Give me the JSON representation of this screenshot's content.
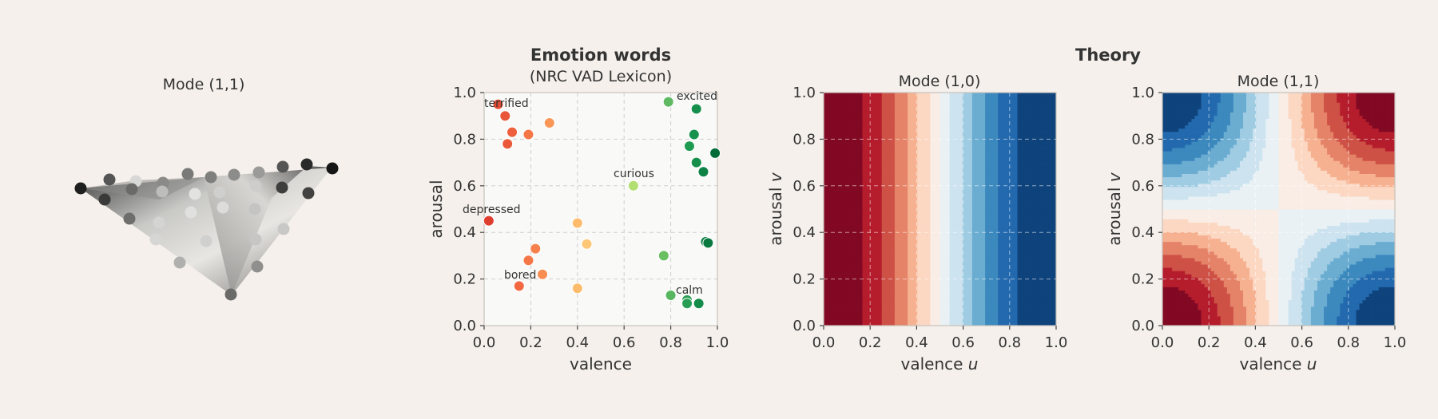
{
  "chart_data": [
    {
      "type": "surface3d",
      "title": "Mode (1,1)",
      "description_points": "3D surface view, axes hidden"
    },
    {
      "type": "scatter",
      "title": "Emotion words",
      "subtitle": "(NRC VAD Lexicon)",
      "xlabel": "valence",
      "ylabel": "arousal",
      "xlim": [
        0,
        1
      ],
      "ylim": [
        0,
        1
      ],
      "ticks": [
        "0.0",
        "0.2",
        "0.4",
        "0.6",
        "0.8",
        "1.0"
      ],
      "grid": true,
      "points": [
        {
          "x": 0.06,
          "y": 0.95
        },
        {
          "x": 0.09,
          "y": 0.9
        },
        {
          "x": 0.12,
          "y": 0.83
        },
        {
          "x": 0.19,
          "y": 0.82
        },
        {
          "x": 0.1,
          "y": 0.78
        },
        {
          "x": 0.28,
          "y": 0.87
        },
        {
          "x": 0.02,
          "y": 0.45
        },
        {
          "x": 0.22,
          "y": 0.33
        },
        {
          "x": 0.19,
          "y": 0.28
        },
        {
          "x": 0.25,
          "y": 0.22
        },
        {
          "x": 0.15,
          "y": 0.17
        },
        {
          "x": 0.4,
          "y": 0.44
        },
        {
          "x": 0.44,
          "y": 0.35
        },
        {
          "x": 0.4,
          "y": 0.16
        },
        {
          "x": 0.64,
          "y": 0.6
        },
        {
          "x": 0.79,
          "y": 0.96
        },
        {
          "x": 0.91,
          "y": 0.93
        },
        {
          "x": 0.9,
          "y": 0.82
        },
        {
          "x": 0.88,
          "y": 0.77
        },
        {
          "x": 0.91,
          "y": 0.7
        },
        {
          "x": 0.94,
          "y": 0.66
        },
        {
          "x": 0.99,
          "y": 0.74
        },
        {
          "x": 0.95,
          "y": 0.36
        },
        {
          "x": 0.96,
          "y": 0.355
        },
        {
          "x": 0.77,
          "y": 0.3
        },
        {
          "x": 0.8,
          "y": 0.13
        },
        {
          "x": 0.87,
          "y": 0.11
        },
        {
          "x": 0.87,
          "y": 0.095
        },
        {
          "x": 0.92,
          "y": 0.095
        }
      ],
      "annotations": [
        {
          "text": "terrified",
          "x": 0.06,
          "y": 0.95
        },
        {
          "text": "excited",
          "x": 0.91,
          "y": 0.98
        },
        {
          "text": "curious",
          "x": 0.64,
          "y": 0.64
        },
        {
          "text": "depressed",
          "x": 0.02,
          "y": 0.49
        },
        {
          "text": "bored",
          "x": 0.15,
          "y": 0.21
        },
        {
          "text": "calm",
          "x": 0.87,
          "y": 0.14
        }
      ]
    },
    {
      "type": "heatmap",
      "group_title": "Theory",
      "title": "Mode (1,0)",
      "xlabel": "valence u",
      "ylabel": "arousal v",
      "xlim": [
        0,
        1
      ],
      "ylim": [
        0,
        1
      ],
      "ticks": [
        "0.0",
        "0.2",
        "0.4",
        "0.6",
        "0.8",
        "1.0"
      ],
      "function": "cos(pi*u)",
      "colormap": "RdBu",
      "levels": 14
    },
    {
      "type": "heatmap",
      "group_title": "Theory",
      "title": "Mode (1,1)",
      "xlabel": "valence u",
      "ylabel": "arousal v",
      "xlim": [
        0,
        1
      ],
      "ylim": [
        0,
        1
      ],
      "ticks": [
        "0.0",
        "0.2",
        "0.4",
        "0.6",
        "0.8",
        "1.0"
      ],
      "function": "cos(pi*u)*cos(pi*v)",
      "colormap": "RdBu",
      "levels": 14
    }
  ],
  "labels": {
    "p1_title": "Mode (1,1)",
    "p2_title": "Emotion words",
    "p2_subtitle": "(NRC VAD Lexicon)",
    "p2_xlabel": "valence",
    "p2_ylabel": "arousal",
    "theory_title": "Theory",
    "p3_title": "Mode (1,0)",
    "p4_title": "Mode (1,1)",
    "xlabel_uv": "valence u",
    "ylabel_uv": "arousal v",
    "annot_terrified": "terrified",
    "annot_excited": "excited",
    "annot_curious": "curious",
    "annot_depressed": "depressed",
    "annot_bored": "bored",
    "annot_calm": "calm"
  },
  "ticks": [
    "0.0",
    "0.2",
    "0.4",
    "0.6",
    "0.8",
    "1.0"
  ]
}
